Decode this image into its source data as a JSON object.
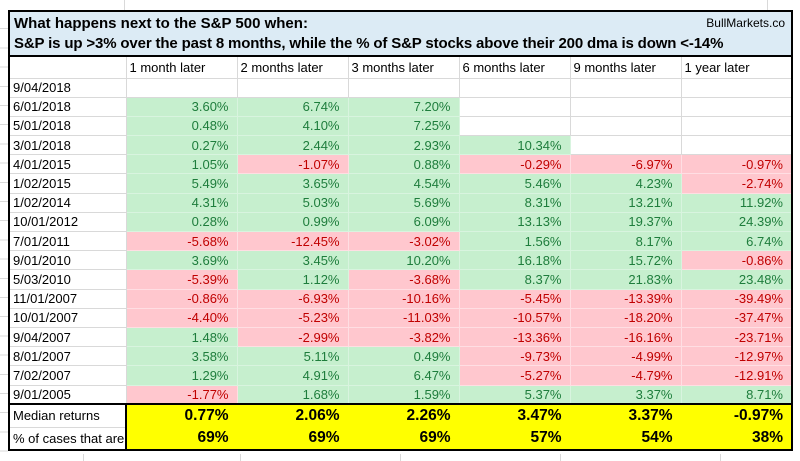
{
  "brand": "BullMarkets.co",
  "title_line1": "What happens next to the S&P 500 when:",
  "title_line2": "S&P is up >3% over the past 8 months, while the % of S&P stocks above their 200 dma is down <-14%",
  "columns": [
    "1 month later",
    "2 months later",
    "3 months later",
    "6 months later",
    "9 months later",
    "1 year later"
  ],
  "rows": [
    {
      "date": "9/04/2018",
      "values": [
        "",
        "",
        "",
        "",
        "",
        ""
      ]
    },
    {
      "date": "6/01/2018",
      "values": [
        "3.60%",
        "6.74%",
        "7.20%",
        "",
        "",
        ""
      ]
    },
    {
      "date": "5/01/2018",
      "values": [
        "0.48%",
        "4.10%",
        "7.25%",
        "",
        "",
        ""
      ]
    },
    {
      "date": "3/01/2018",
      "values": [
        "0.27%",
        "2.44%",
        "2.93%",
        "10.34%",
        "",
        ""
      ]
    },
    {
      "date": "4/01/2015",
      "values": [
        "1.05%",
        "-1.07%",
        "0.88%",
        "-0.29%",
        "-6.97%",
        "-0.97%"
      ]
    },
    {
      "date": "1/02/2015",
      "values": [
        "5.49%",
        "3.65%",
        "4.54%",
        "5.46%",
        "4.23%",
        "-2.74%"
      ]
    },
    {
      "date": "1/02/2014",
      "values": [
        "4.31%",
        "5.03%",
        "5.69%",
        "8.31%",
        "13.21%",
        "11.92%"
      ]
    },
    {
      "date": "10/01/2012",
      "values": [
        "0.28%",
        "0.99%",
        "6.09%",
        "13.13%",
        "19.37%",
        "24.39%"
      ]
    },
    {
      "date": "7/01/2011",
      "values": [
        "-5.68%",
        "-12.45%",
        "-3.02%",
        "1.56%",
        "8.17%",
        "6.74%"
      ]
    },
    {
      "date": "9/01/2010",
      "values": [
        "3.69%",
        "3.45%",
        "10.20%",
        "16.18%",
        "15.72%",
        "-0.86%"
      ]
    },
    {
      "date": "5/03/2010",
      "values": [
        "-5.39%",
        "1.12%",
        "-3.68%",
        "8.37%",
        "21.83%",
        "23.48%"
      ]
    },
    {
      "date": "11/01/2007",
      "values": [
        "-0.86%",
        "-6.93%",
        "-10.16%",
        "-5.45%",
        "-13.39%",
        "-39.49%"
      ]
    },
    {
      "date": "10/01/2007",
      "values": [
        "-4.40%",
        "-5.23%",
        "-11.03%",
        "-10.57%",
        "-18.20%",
        "-37.47%"
      ]
    },
    {
      "date": "9/04/2007",
      "values": [
        "1.48%",
        "-2.99%",
        "-3.82%",
        "-13.36%",
        "-16.16%",
        "-23.71%"
      ]
    },
    {
      "date": "8/01/2007",
      "values": [
        "3.58%",
        "5.11%",
        "0.49%",
        "-9.73%",
        "-4.99%",
        "-12.97%"
      ]
    },
    {
      "date": "7/02/2007",
      "values": [
        "1.29%",
        "4.91%",
        "6.47%",
        "-5.27%",
        "-4.79%",
        "-12.91%"
      ]
    },
    {
      "date": "9/01/2005",
      "values": [
        "-1.77%",
        "1.68%",
        "1.59%",
        "5.37%",
        "3.37%",
        "8.71%"
      ]
    }
  ],
  "footer": {
    "median_label": "Median returns",
    "median_values": [
      "0.77%",
      "2.06%",
      "2.26%",
      "3.47%",
      "3.37%",
      "-0.97%"
    ],
    "cases_label": "% of cases that are",
    "cases_values": [
      "69%",
      "69%",
      "69%",
      "57%",
      "54%",
      "38%"
    ]
  },
  "colors": {
    "header_bg": "#dcebf5",
    "positive_bg": "#c6efce",
    "positive_text": "#1e7d3c",
    "negative_bg": "#ffc7ce",
    "negative_text": "#c00000",
    "highlight_bg": "#ffff00",
    "grid_line": "#d9d9d9"
  }
}
